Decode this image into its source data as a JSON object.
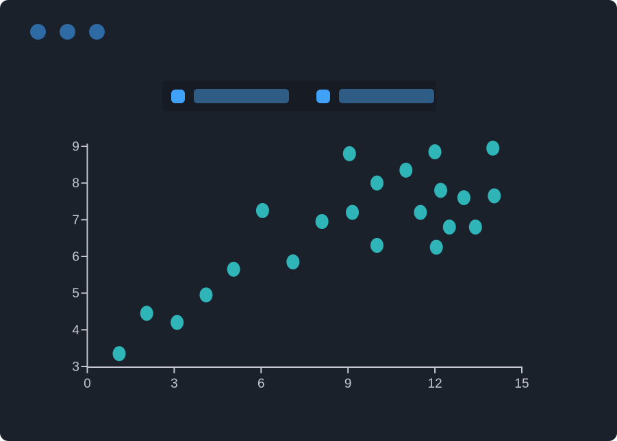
{
  "window": {
    "background": "#1a212b",
    "traffic_lights": {
      "count": 3,
      "color": "#2e6ba4"
    }
  },
  "toolbar": {
    "background": "#161b24",
    "items": [
      {
        "name": "legend-item-1",
        "swatch_color": "#3fa2f8",
        "bar_color": "#2e5c85"
      },
      {
        "name": "legend-item-2",
        "swatch_color": "#3fa2f8",
        "bar_color": "#2e5c85"
      }
    ]
  },
  "chart_data": {
    "type": "scatter",
    "title": "",
    "xlabel": "",
    "ylabel": "",
    "xlim": [
      0,
      15
    ],
    "ylim": [
      3,
      9
    ],
    "xticks": [
      0,
      3,
      6,
      9,
      12,
      15
    ],
    "yticks": [
      3,
      4,
      5,
      6,
      7,
      8,
      9
    ],
    "grid": false,
    "legend_position": "none",
    "axis_color": "#c5c6cf",
    "marker": {
      "shape": "ellipse",
      "color": "#2fb4b8"
    },
    "points": [
      [
        1.1,
        3.35
      ],
      [
        2.05,
        4.45
      ],
      [
        3.1,
        4.2
      ],
      [
        4.1,
        4.95
      ],
      [
        5.05,
        5.65
      ],
      [
        6.05,
        7.25
      ],
      [
        7.1,
        5.85
      ],
      [
        8.1,
        6.95
      ],
      [
        9.05,
        8.8
      ],
      [
        9.15,
        7.2
      ],
      [
        10.0,
        8.0
      ],
      [
        10.0,
        6.3
      ],
      [
        11.0,
        8.35
      ],
      [
        11.5,
        7.2
      ],
      [
        12.0,
        8.85
      ],
      [
        12.05,
        6.25
      ],
      [
        12.2,
        7.8
      ],
      [
        12.5,
        6.8
      ],
      [
        13.0,
        7.6
      ],
      [
        13.4,
        6.8
      ],
      [
        14.0,
        8.95
      ],
      [
        14.05,
        7.65
      ]
    ]
  }
}
